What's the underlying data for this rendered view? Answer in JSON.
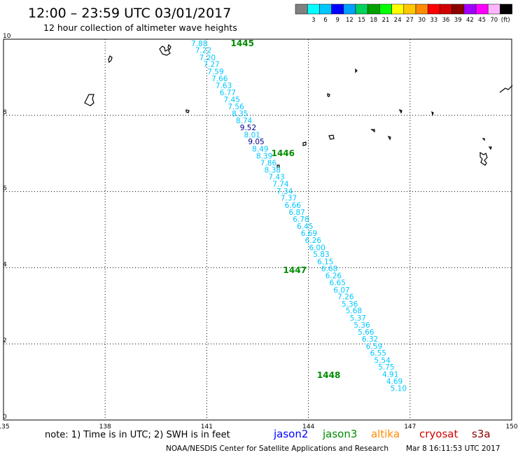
{
  "header": {
    "title": "12:00 – 23:59 UTC 03/01/2017",
    "subtitle": "12 hour collection of altimeter wave heights"
  },
  "colorbar": {
    "colors": [
      "#808080",
      "#00ffff",
      "#00c8ff",
      "#0000ff",
      "#00a0ff",
      "#00d25a",
      "#00a000",
      "#00ff00",
      "#ffff00",
      "#ffc800",
      "#ff8c00",
      "#ff0000",
      "#d20000",
      "#8c0000",
      "#a000ff",
      "#ff00ff",
      "#ffb4ff",
      "#000000"
    ],
    "labels": [
      "3",
      "6",
      "9",
      "12",
      "15",
      "18",
      "21",
      "24",
      "27",
      "30",
      "33",
      "36",
      "39",
      "42",
      "45",
      "70"
    ],
    "unit": "(ft)"
  },
  "axes": {
    "x_labels": [
      {
        "lon": 135,
        "label": "135"
      },
      {
        "lon": 138,
        "label": "138"
      },
      {
        "lon": 141,
        "label": "141"
      },
      {
        "lon": 144,
        "label": "144"
      },
      {
        "lon": 147,
        "label": "147"
      },
      {
        "lon": 150,
        "label": "150"
      }
    ],
    "y_labels": [
      {
        "lat": 0,
        "label": "0"
      },
      {
        "lat": 2,
        "label": "2"
      },
      {
        "lat": 4,
        "label": "4"
      },
      {
        "lat": 6,
        "label": "6"
      },
      {
        "lat": 8,
        "label": "8"
      },
      {
        "lat": 10,
        "label": "10"
      }
    ],
    "lon_range": [
      135,
      150
    ],
    "lat_range": [
      0,
      10
    ]
  },
  "colors": {
    "cyan": "#00c8ff",
    "navy": "#00008b",
    "lightgreen": "#90ee90",
    "jason2": "#0000ff",
    "jason3": "#008c00",
    "altika": "#ff8c00",
    "cryosat": "#d20000",
    "s3a": "#8c0000"
  },
  "tracks": [
    {
      "name": "jason3",
      "pass_labels": [
        {
          "text": "1445",
          "lon": 142.05,
          "lat": 9.82
        },
        {
          "text": "1446",
          "lon": 143.25,
          "lat": 6.93
        },
        {
          "text": "1447",
          "lon": 143.6,
          "lat": 3.86
        },
        {
          "text": "1448",
          "lon": 144.6,
          "lat": 1.1
        }
      ],
      "points": [
        {
          "v": "7.88",
          "lon": 140.78,
          "lat": 9.82
        },
        {
          "v": "7.22",
          "lon": 140.9,
          "lat": 9.64
        },
        {
          "v": "7.20",
          "lon": 141.02,
          "lat": 9.45
        },
        {
          "v": "7.27",
          "lon": 141.14,
          "lat": 9.27
        },
        {
          "v": "7.59",
          "lon": 141.26,
          "lat": 9.08
        },
        {
          "v": "7.66",
          "lon": 141.38,
          "lat": 8.9
        },
        {
          "v": "7.63",
          "lon": 141.5,
          "lat": 8.71
        },
        {
          "v": "6.77",
          "lon": 141.62,
          "lat": 8.53
        },
        {
          "v": "7.45",
          "lon": 141.74,
          "lat": 8.35
        },
        {
          "v": "7.56",
          "lon": 141.86,
          "lat": 8.16
        },
        {
          "v": "8.35",
          "lon": 141.98,
          "lat": 7.98
        },
        {
          "v": "8.74",
          "lon": 142.1,
          "lat": 7.79
        },
        {
          "v": "9.52",
          "lon": 142.22,
          "lat": 7.61,
          "c": "navy"
        },
        {
          "v": "8.01",
          "lon": 142.34,
          "lat": 7.42
        },
        {
          "v": "9.05",
          "lon": 142.46,
          "lat": 7.24,
          "c": "navy"
        },
        {
          "v": "8.49",
          "lon": 142.58,
          "lat": 7.05
        },
        {
          "v": "8.39",
          "lon": 142.7,
          "lat": 6.87
        },
        {
          "v": "7.86",
          "lon": 142.82,
          "lat": 6.68
        },
        {
          "v": "8.38",
          "lon": 142.94,
          "lat": 6.5
        },
        {
          "v": "7.43",
          "lon": 143.06,
          "lat": 6.31
        },
        {
          "v": "7.74",
          "lon": 143.18,
          "lat": 6.13
        },
        {
          "v": "7.34",
          "lon": 143.3,
          "lat": 5.94
        },
        {
          "v": "7.37",
          "lon": 143.42,
          "lat": 5.76
        },
        {
          "v": "6.66",
          "lon": 143.54,
          "lat": 5.57
        },
        {
          "v": "6.87",
          "lon": 143.66,
          "lat": 5.39
        },
        {
          "v": "6.78",
          "lon": 143.78,
          "lat": 5.2
        },
        {
          "v": "6.45",
          "lon": 143.9,
          "lat": 5.02
        },
        {
          "v": "6.69",
          "lon": 144.02,
          "lat": 4.83
        },
        {
          "v": "6.26",
          "lon": 144.14,
          "lat": 4.65
        },
        {
          "v": "6.00",
          "lon": 144.26,
          "lat": 4.46
        },
        {
          "v": "5.83",
          "lon": 144.38,
          "lat": 4.28
        },
        {
          "v": "6.15",
          "lon": 144.5,
          "lat": 4.09
        },
        {
          "v": "6.68",
          "lon": 144.62,
          "lat": 3.91
        },
        {
          "v": "6.26",
          "lon": 144.74,
          "lat": 3.72
        },
        {
          "v": "6.65",
          "lon": 144.86,
          "lat": 3.54
        },
        {
          "v": "6.07",
          "lon": 144.98,
          "lat": 3.35
        },
        {
          "v": "7.26",
          "lon": 145.1,
          "lat": 3.17
        },
        {
          "v": "5.36",
          "lon": 145.22,
          "lat": 2.98
        },
        {
          "v": "5.68",
          "lon": 145.34,
          "lat": 2.8
        },
        {
          "v": "5.37",
          "lon": 145.46,
          "lat": 2.61
        },
        {
          "v": "5.36",
          "lon": 145.58,
          "lat": 2.43
        },
        {
          "v": "5.66",
          "lon": 145.7,
          "lat": 2.24
        },
        {
          "v": "6.32",
          "lon": 145.82,
          "lat": 2.06
        },
        {
          "v": "6.59",
          "lon": 145.94,
          "lat": 1.87
        },
        {
          "v": "6.55",
          "lon": 146.06,
          "lat": 1.69
        },
        {
          "v": "5.54",
          "lon": 146.18,
          "lat": 1.5
        },
        {
          "v": "5.75",
          "lon": 146.3,
          "lat": 1.32
        },
        {
          "v": "4.91",
          "lon": 146.42,
          "lat": 1.13
        },
        {
          "v": "4.69",
          "lon": 146.54,
          "lat": 0.95
        },
        {
          "v": "5.10",
          "lon": 146.66,
          "lat": 0.76
        }
      ]
    }
  ],
  "legend": {
    "note": "note: 1) Time is in UTC; 2) SWH is in feet",
    "jason2": "jason2",
    "jason3": "jason3",
    "altika": "altika",
    "cryosat": "cryosat",
    "s3a": "s3a"
  },
  "footer": {
    "credit": "NOAA/NESDIS Center for Satellite Applications and Research",
    "timestamp": "Mar  8 16:11:53 UTC 2017"
  }
}
